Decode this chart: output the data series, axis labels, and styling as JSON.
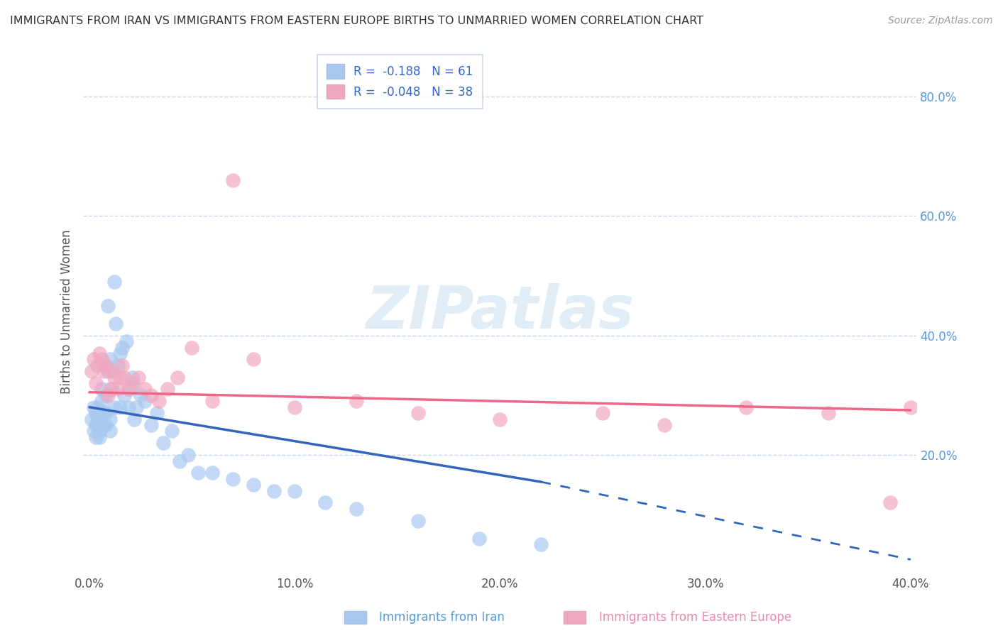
{
  "title": "IMMIGRANTS FROM IRAN VS IMMIGRANTS FROM EASTERN EUROPE BIRTHS TO UNMARRIED WOMEN CORRELATION CHART",
  "source": "Source: ZipAtlas.com",
  "ylabel": "Births to Unmarried Women",
  "xlabel_blue": "Immigrants from Iran",
  "xlabel_pink": "Immigrants from Eastern Europe",
  "legend_blue_R": "R =  -0.188",
  "legend_blue_N": "N = 61",
  "legend_pink_R": "R =  -0.048",
  "legend_pink_N": "N = 38",
  "xlim": [
    -0.003,
    0.403
  ],
  "ylim": [
    0.0,
    0.88
  ],
  "yticks": [
    0.2,
    0.4,
    0.6,
    0.8
  ],
  "ytick_labels": [
    "20.0%",
    "40.0%",
    "60.0%",
    "80.0%"
  ],
  "xticks": [
    0.0,
    0.1,
    0.2,
    0.3,
    0.4
  ],
  "xtick_labels": [
    "0.0%",
    "10.0%",
    "20.0%",
    "30.0%",
    "40.0%"
  ],
  "color_blue": "#a8c8f0",
  "color_pink": "#f0a8c0",
  "line_blue": "#3366bb",
  "line_pink": "#ee6688",
  "watermark": "ZIPatlas",
  "blue_x": [
    0.001,
    0.002,
    0.002,
    0.003,
    0.003,
    0.003,
    0.004,
    0.004,
    0.004,
    0.005,
    0.005,
    0.005,
    0.005,
    0.006,
    0.006,
    0.006,
    0.007,
    0.007,
    0.007,
    0.008,
    0.008,
    0.008,
    0.009,
    0.009,
    0.01,
    0.01,
    0.01,
    0.011,
    0.012,
    0.012,
    0.013,
    0.014,
    0.015,
    0.015,
    0.016,
    0.017,
    0.018,
    0.019,
    0.02,
    0.021,
    0.022,
    0.023,
    0.025,
    0.027,
    0.03,
    0.033,
    0.036,
    0.04,
    0.044,
    0.048,
    0.053,
    0.06,
    0.07,
    0.08,
    0.09,
    0.1,
    0.115,
    0.13,
    0.16,
    0.19,
    0.22
  ],
  "blue_y": [
    0.26,
    0.28,
    0.24,
    0.27,
    0.25,
    0.23,
    0.26,
    0.28,
    0.25,
    0.24,
    0.27,
    0.25,
    0.23,
    0.29,
    0.31,
    0.26,
    0.35,
    0.25,
    0.27,
    0.3,
    0.27,
    0.25,
    0.34,
    0.45,
    0.36,
    0.26,
    0.24,
    0.31,
    0.28,
    0.49,
    0.42,
    0.35,
    0.37,
    0.28,
    0.38,
    0.3,
    0.39,
    0.28,
    0.31,
    0.33,
    0.26,
    0.28,
    0.3,
    0.29,
    0.25,
    0.27,
    0.22,
    0.24,
    0.19,
    0.2,
    0.17,
    0.17,
    0.16,
    0.15,
    0.14,
    0.14,
    0.12,
    0.11,
    0.09,
    0.06,
    0.05
  ],
  "pink_x": [
    0.001,
    0.002,
    0.003,
    0.004,
    0.005,
    0.006,
    0.007,
    0.008,
    0.009,
    0.01,
    0.011,
    0.012,
    0.014,
    0.015,
    0.016,
    0.017,
    0.019,
    0.021,
    0.024,
    0.027,
    0.03,
    0.034,
    0.038,
    0.043,
    0.05,
    0.06,
    0.07,
    0.08,
    0.1,
    0.13,
    0.16,
    0.2,
    0.25,
    0.28,
    0.32,
    0.36,
    0.39,
    0.4
  ],
  "pink_y": [
    0.34,
    0.36,
    0.32,
    0.35,
    0.37,
    0.36,
    0.34,
    0.35,
    0.3,
    0.31,
    0.34,
    0.33,
    0.31,
    0.33,
    0.35,
    0.33,
    0.31,
    0.32,
    0.33,
    0.31,
    0.3,
    0.29,
    0.31,
    0.33,
    0.38,
    0.29,
    0.66,
    0.36,
    0.28,
    0.29,
    0.27,
    0.26,
    0.27,
    0.25,
    0.28,
    0.27,
    0.12,
    0.28
  ],
  "line_blue_x0": 0.0,
  "line_blue_x1": 0.22,
  "line_blue_y0": 0.28,
  "line_blue_y1": 0.155,
  "line_blue_dash_x1": 0.4,
  "line_blue_dash_y1": 0.025,
  "line_pink_x0": 0.0,
  "line_pink_x1": 0.4,
  "line_pink_y0": 0.305,
  "line_pink_y1": 0.275
}
